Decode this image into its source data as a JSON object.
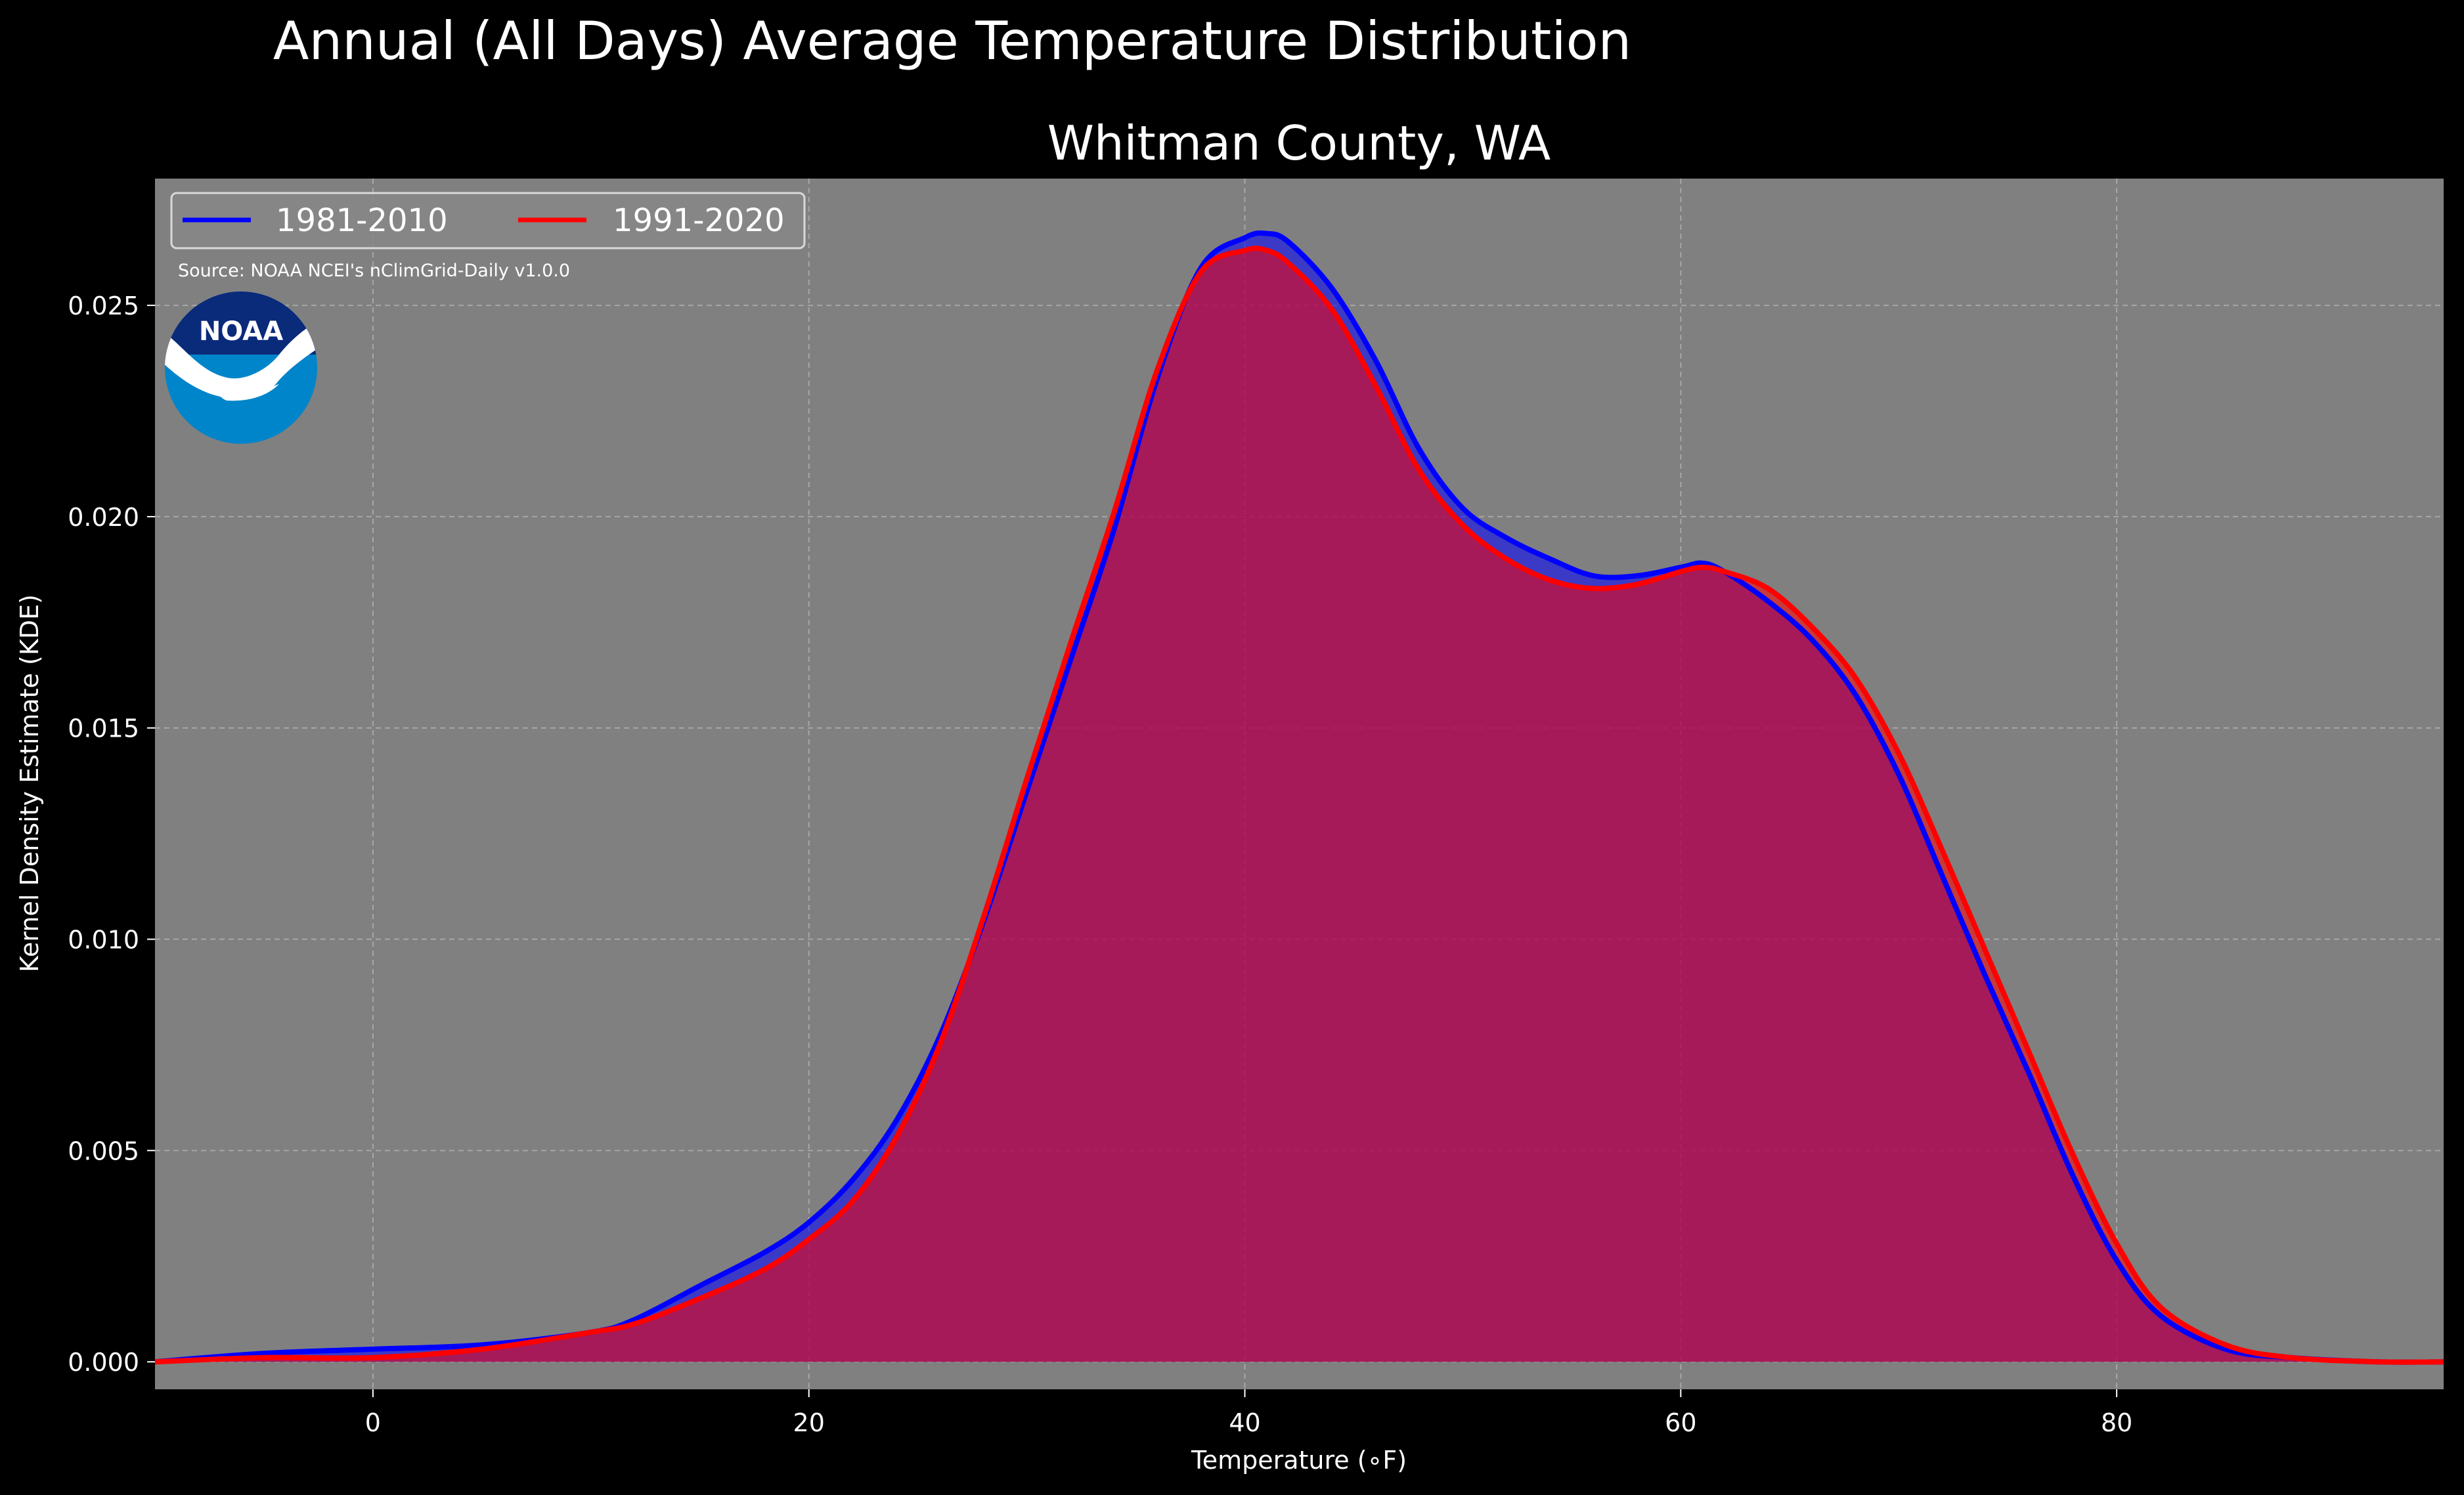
{
  "suptitle": "Annual (All Days) Average Temperature Distribution",
  "source_text": "Source: NOAA NCEI's nClimGrid-Daily v1.0.0",
  "logo": {
    "text": "NOAA",
    "icon": "noaa-logo",
    "colors": {
      "dark": "#0a2a7a",
      "light": "#0085ca",
      "white": "#ffffff"
    }
  },
  "colors": {
    "background": "#000000",
    "plot_background": "#808080",
    "series_1981_2010": "#0000ff",
    "series_1991_2020": "#ff0000",
    "overlap_fill": "#9e1e5e"
  },
  "chart_data": {
    "type": "area",
    "title": "Whitman County, WA",
    "xlabel": "Temperature (∘F)",
    "ylabel": "Kernel Density Estimate (KDE)",
    "xlim": [
      -10,
      95
    ],
    "ylim": [
      -0.00065,
      0.028
    ],
    "xticks": [
      0,
      20,
      40,
      60,
      80
    ],
    "xtick_labels": [
      "0",
      "20",
      "40",
      "60",
      "80"
    ],
    "yticks": [
      0.0,
      0.005,
      0.01,
      0.015,
      0.02,
      0.025
    ],
    "ytick_labels": [
      "0.000",
      "0.005",
      "0.010",
      "0.015",
      "0.020",
      "0.025"
    ],
    "grid": true,
    "legend_position": "upper-left",
    "legend_columns": 2,
    "x": [
      -10,
      -5,
      0,
      5,
      10,
      12,
      15,
      18,
      20,
      22,
      24,
      26,
      28,
      30,
      32,
      34,
      36,
      38,
      40,
      41,
      42,
      44,
      46,
      48,
      50,
      52,
      54,
      56,
      58,
      60,
      61,
      62,
      64,
      66,
      68,
      70,
      72,
      74,
      76,
      78,
      80,
      82,
      85,
      88,
      92,
      95
    ],
    "series": [
      {
        "name": "1981-2010",
        "color": "#0000ff",
        "values": [
          0.0,
          0.0002,
          0.0003,
          0.0004,
          0.0007,
          0.001,
          0.0018,
          0.0026,
          0.0033,
          0.0043,
          0.0057,
          0.0077,
          0.0104,
          0.0135,
          0.0166,
          0.0197,
          0.0233,
          0.0259,
          0.0266,
          0.0267,
          0.0265,
          0.0254,
          0.0237,
          0.0216,
          0.0202,
          0.0195,
          0.019,
          0.0186,
          0.0186,
          0.0188,
          0.0189,
          0.0187,
          0.018,
          0.0171,
          0.0158,
          0.0139,
          0.0115,
          0.0091,
          0.0068,
          0.0044,
          0.0024,
          0.0011,
          0.0003,
          0.0001,
          0.0,
          0.0
        ]
      },
      {
        "name": "1991-2020",
        "color": "#ff0000",
        "values": [
          0.0,
          0.0001,
          0.0001,
          0.0003,
          0.0007,
          0.0009,
          0.0015,
          0.0022,
          0.0029,
          0.0038,
          0.0053,
          0.0075,
          0.0105,
          0.0138,
          0.017,
          0.0201,
          0.0235,
          0.0258,
          0.0263,
          0.0263,
          0.026,
          0.0249,
          0.0231,
          0.0211,
          0.0198,
          0.019,
          0.0185,
          0.0183,
          0.0184,
          0.0187,
          0.0188,
          0.0187,
          0.0183,
          0.0174,
          0.0162,
          0.0144,
          0.0121,
          0.0097,
          0.0073,
          0.0049,
          0.0028,
          0.0013,
          0.0004,
          0.0001,
          0.0,
          0.0
        ]
      }
    ]
  }
}
